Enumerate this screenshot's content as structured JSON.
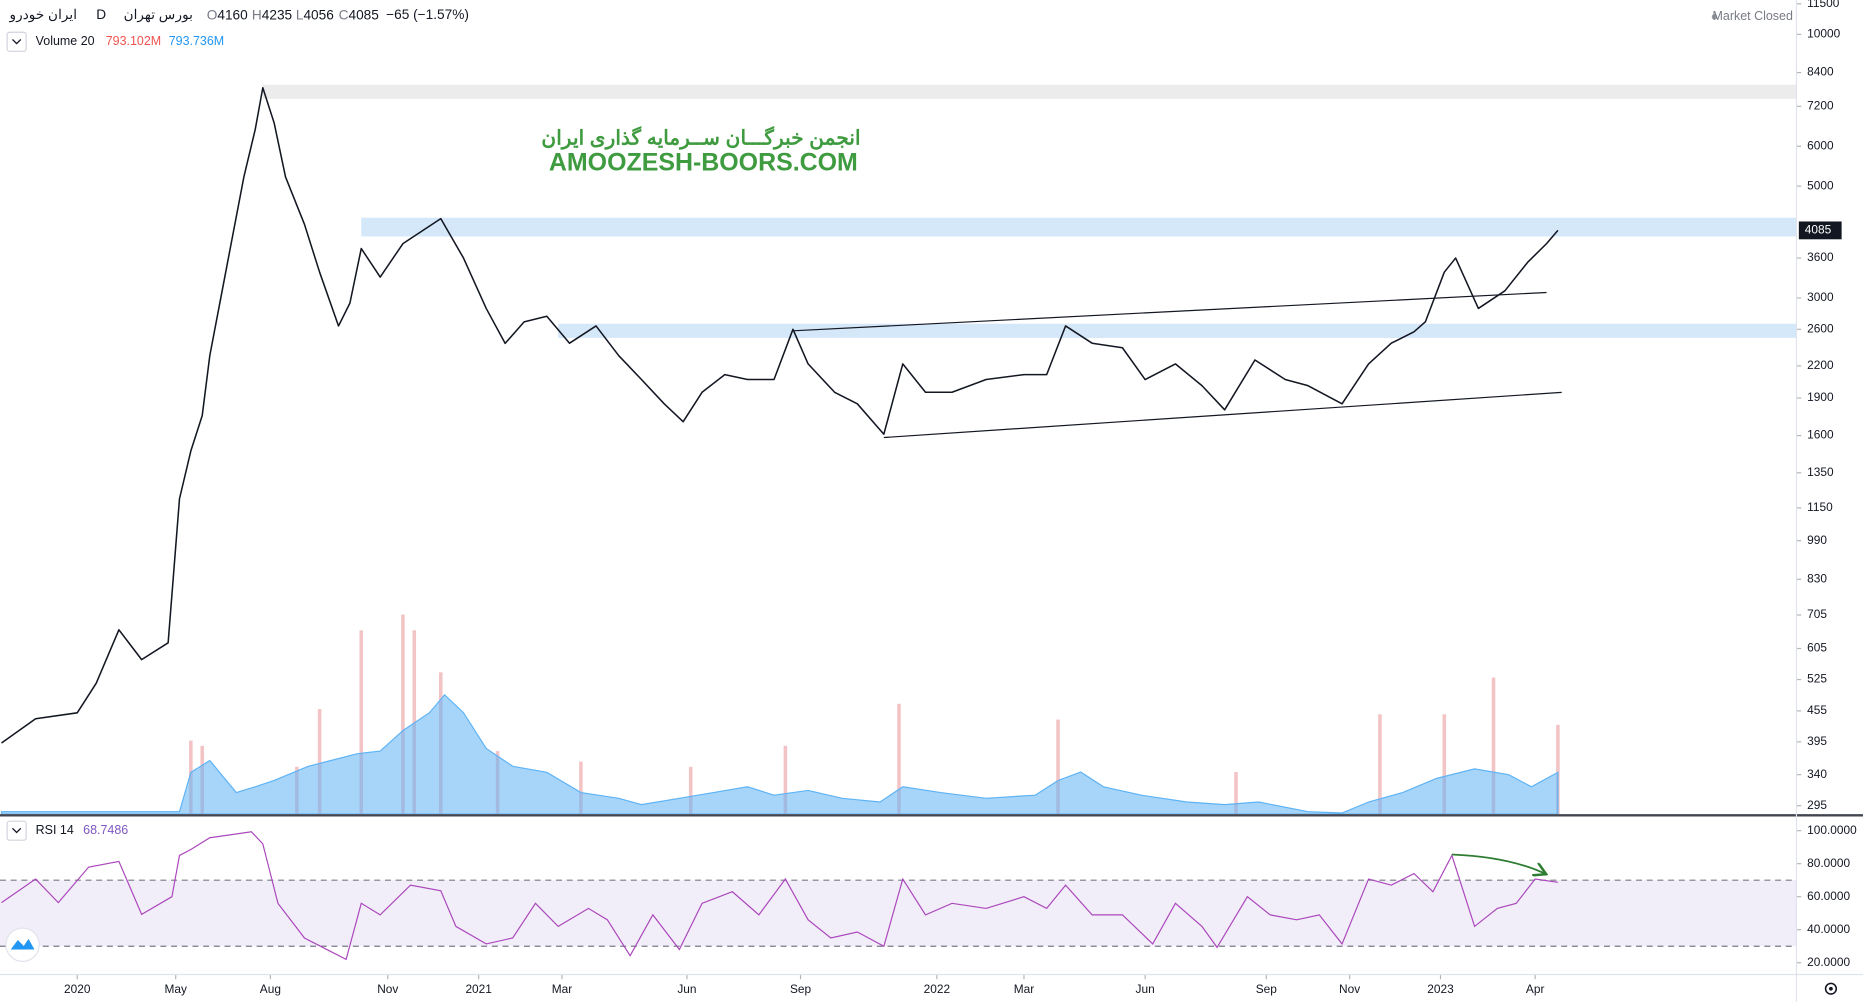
{
  "header": {
    "symbol": "ایران خودرو",
    "interval": "D",
    "exchange": "بورس تهران",
    "ohlc": [
      {
        "label": "O",
        "value": 4160
      },
      {
        "label": "H",
        "value": 4235
      },
      {
        "label": "L",
        "value": 4056
      },
      {
        "label": "C",
        "value": 4085
      }
    ],
    "change": "−65 (−1.57%)",
    "status": "Market Closed",
    "volume_legend": "Volume 20",
    "volume_value": "793.102M",
    "volume_ma_value": "793.736M",
    "rsi_legend": "RSI 14",
    "rsi_value": "68.7486",
    "watermark_fa": "انجمن خبرگـــان ســرمایه گذاری ایران",
    "watermark_en": "AMOOZESH-BOORS.COM"
  },
  "chart_data": [
    {
      "type": "line",
      "log_scale": true,
      "xlim": [
        -2.04,
        45.4
      ],
      "ylim": [
        284,
        11690
      ],
      "yticks": [
        295,
        340,
        395,
        455,
        525,
        605,
        705,
        830,
        990,
        1150,
        1350,
        1600,
        1900,
        2200,
        2600,
        3000,
        3600,
        5000,
        6000,
        7200,
        8400,
        10000,
        11500
      ],
      "y2lim": [
        0,
        15500
      ],
      "last_price": 4085,
      "series": [
        {
          "name": "Volume",
          "type": "bar",
          "axis": "y2",
          "color": "#f3c4c6",
          "x": [
            3.0,
            3.3,
            5.8,
            6.4,
            7.5,
            8.6,
            8.9,
            9.6,
            11.1,
            13.3,
            16.2,
            18.7,
            21.7,
            25.9,
            30.6,
            34.4,
            36.1,
            37.4,
            39.1
          ],
          "values": [
            1400,
            1300,
            900,
            2000,
            3500,
            3800,
            3500,
            2700,
            1200,
            1000,
            900,
            1300,
            2100,
            1800,
            800,
            1900,
            1900,
            2600,
            1700
          ]
        },
        {
          "name": "Volume MA",
          "type": "area",
          "axis": "y2",
          "color": "#5eb3f5",
          "x": [
            -2.0,
            2.7,
            3.0,
            3.5,
            4.2,
            4.7,
            5.2,
            6.1,
            6.7,
            7.4,
            8.0,
            8.6,
            9.3,
            9.7,
            10.2,
            10.8,
            11.5,
            12.4,
            13.3,
            14.3,
            14.9,
            15.9,
            16.8,
            17.7,
            18.4,
            19.3,
            20.2,
            21.2,
            21.8,
            22.8,
            24.0,
            25.3,
            25.9,
            26.5,
            27.1,
            28.1,
            29.3,
            30.3,
            31.2,
            32.5,
            33.4,
            34.1,
            35.0,
            35.9,
            36.9,
            37.8,
            38.4,
            39.1
          ],
          "values": [
            45,
            45,
            795,
            1020,
            410,
            520,
            640,
            910,
            1020,
            1150,
            1200,
            1590,
            1930,
            2270,
            1930,
            1250,
            910,
            795,
            410,
            300,
            180,
            300,
            410,
            520,
            360,
            450,
            300,
            230,
            520,
            410,
            300,
            360,
            640,
            800,
            520,
            360,
            230,
            180,
            230,
            45,
            20,
            230,
            410,
            680,
            860,
            750,
            520,
            794
          ]
        },
        {
          "name": "Price",
          "type": "line",
          "color": "#131722",
          "x": [
            -2.0,
            -1.1,
            0,
            0.5,
            1.1,
            1.7,
            2.4,
            2.7,
            3.0,
            3.3,
            3.5,
            3.8,
            4.1,
            4.4,
            4.7,
            4.9,
            5.2,
            5.5,
            6.0,
            6.4,
            6.9,
            7.2,
            7.5,
            8.0,
            8.6,
            9.6,
            10.2,
            10.8,
            11.3,
            11.8,
            12.4,
            13.0,
            13.7,
            14.3,
            14.9,
            15.5,
            16.0,
            16.5,
            17.1,
            17.7,
            18.4,
            18.9,
            19.3,
            20.0,
            20.6,
            21.3,
            21.8,
            22.4,
            23.1,
            24.0,
            25.0,
            25.6,
            26.1,
            26.8,
            27.6,
            28.2,
            29.0,
            29.7,
            30.3,
            31.1,
            31.9,
            32.5,
            33.4,
            34.1,
            34.7,
            35.3,
            35.6,
            36.1,
            36.4,
            37.0,
            37.7,
            38.3,
            38.8,
            39.1
          ],
          "values": [
            393,
            439,
            451,
            516,
            659,
            575,
            621,
            1199,
            1492,
            1753,
            2305,
            3026,
            3973,
            5214,
            6479,
            7837,
            6672,
            5214,
            4200,
            3375,
            2640,
            2930,
            3760,
            3300,
            3845,
            4310,
            3600,
            2860,
            2438,
            2690,
            2760,
            2440,
            2640,
            2305,
            2067,
            1850,
            1705,
            1950,
            2114,
            2067,
            2067,
            2600,
            2220,
            1950,
            1850,
            1610,
            2220,
            1950,
            1950,
            2067,
            2114,
            2114,
            2640,
            2440,
            2390,
            2067,
            2220,
            2010,
            1800,
            2260,
            2067,
            2010,
            1850,
            2220,
            2440,
            2570,
            2690,
            3375,
            3600,
            2860,
            3100,
            3530,
            3845,
            4085
          ]
        }
      ],
      "zones": [
        {
          "from": 7450,
          "to": 7950,
          "x_start": 4.9,
          "color": "#ececec"
        },
        {
          "from": 3973,
          "to": 4329,
          "x_start": 7.5,
          "color": "#d4e8fa"
        },
        {
          "from": 2500,
          "to": 2667,
          "x_start": 12.7,
          "color": "#d4e8fa"
        }
      ],
      "trend_lines": [
        {
          "x": [
            18.9,
            38.8
          ],
          "y": [
            2582,
            3076
          ],
          "color": "#131722"
        },
        {
          "x": [
            21.3,
            39.2
          ],
          "y": [
            1586,
            1949
          ],
          "color": "#131722"
        }
      ]
    },
    {
      "type": "line",
      "xlim": [
        -2.04,
        45.4
      ],
      "ylim": [
        12.9,
        108.6
      ],
      "yticks": [
        {
          "value": 100,
          "label": "100.0000"
        },
        {
          "value": 80,
          "label": "80.0000"
        },
        {
          "value": 60,
          "label": "60.0000"
        },
        {
          "value": 40,
          "label": "40.0000"
        },
        {
          "value": 20,
          "label": "20.0000"
        }
      ],
      "band": [
        30,
        70
      ],
      "band_color": "#7e57c2",
      "xticks": [
        {
          "value": 0,
          "label": "2020"
        },
        {
          "value": 2.6,
          "label": "May"
        },
        {
          "value": 5.1,
          "label": "Aug"
        },
        {
          "value": 8.2,
          "label": "Nov"
        },
        {
          "value": 10.6,
          "label": "2021"
        },
        {
          "value": 12.8,
          "label": "Mar"
        },
        {
          "value": 16.1,
          "label": "Jun"
        },
        {
          "value": 19.1,
          "label": "Sep"
        },
        {
          "value": 22.7,
          "label": "2022"
        },
        {
          "value": 25.0,
          "label": "Mar"
        },
        {
          "value": 28.2,
          "label": "Jun"
        },
        {
          "value": 31.4,
          "label": "Sep"
        },
        {
          "value": 33.6,
          "label": "Nov"
        },
        {
          "value": 36.0,
          "label": "2023"
        },
        {
          "value": 38.5,
          "label": "Apr"
        }
      ],
      "series": [
        {
          "name": "RSI",
          "type": "line",
          "color": "#ab47bc",
          "x": [
            -2.0,
            -1.1,
            -0.5,
            0.3,
            1.1,
            1.7,
            2.5,
            2.7,
            3.0,
            3.5,
            4.6,
            4.9,
            5.3,
            6.0,
            6.6,
            7.1,
            7.5,
            8.0,
            8.8,
            9.6,
            10.0,
            10.8,
            11.5,
            12.1,
            12.7,
            13.5,
            14.0,
            14.6,
            15.2,
            15.9,
            16.5,
            17.3,
            18.0,
            18.7,
            19.3,
            19.9,
            20.6,
            21.3,
            21.8,
            22.4,
            23.1,
            24.0,
            25.0,
            25.6,
            26.1,
            26.8,
            27.6,
            28.4,
            29.0,
            29.7,
            30.1,
            30.9,
            31.5,
            32.2,
            32.8,
            33.4,
            34.1,
            34.7,
            35.3,
            35.8,
            36.3,
            36.9,
            37.5,
            38.0,
            38.5,
            39.1
          ],
          "values": [
            56.4,
            70.7,
            56.4,
            77.9,
            81.4,
            49.3,
            60,
            85,
            88.6,
            95.7,
            99.3,
            92,
            56,
            35,
            27.9,
            22,
            56,
            49,
            67,
            63.6,
            42,
            31.4,
            35,
            56,
            42,
            52.9,
            46,
            24.3,
            49,
            28,
            56,
            63,
            49,
            70.7,
            46,
            35,
            38.6,
            30,
            70.7,
            49,
            56,
            52.9,
            60,
            52.9,
            67,
            49,
            49,
            31.4,
            56,
            42,
            29.3,
            60,
            49,
            46,
            49,
            31.4,
            70.7,
            67,
            74,
            63,
            85,
            42,
            52.9,
            56,
            70.7,
            68.7
          ]
        }
      ]
    }
  ]
}
